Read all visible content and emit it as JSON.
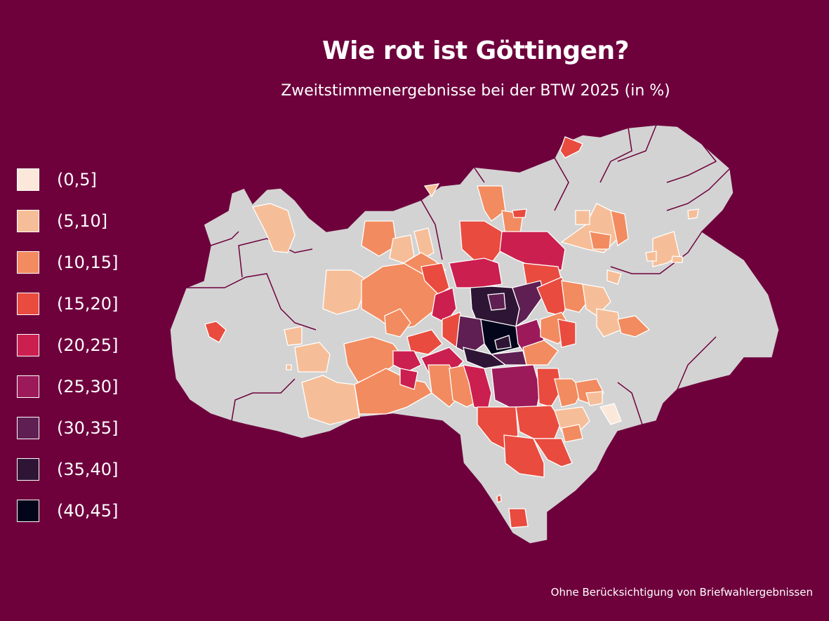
{
  "title": "Wie rot ist Göttingen?",
  "subtitle": "Zweitstimmenergebnisse bei der BTW 2025 (in %)",
  "footnote": "Ohne Berücksichtigung von Briefwahlergebnissen",
  "colors": {
    "background": "#6e003c",
    "no_data": "#d3d3d3",
    "border": "#ffffff",
    "district_border": "#6e003c"
  },
  "legend": [
    {
      "label": "(0,5]",
      "color": "#fbe8da"
    },
    {
      "label": "(5,10]",
      "color": "#f6be98"
    },
    {
      "label": "(10,15]",
      "color": "#f28b5f"
    },
    {
      "label": "(15,20]",
      "color": "#e94b3f"
    },
    {
      "label": "(20,25]",
      "color": "#cb1f4f"
    },
    {
      "label": "(25,30]",
      "color": "#9c1a5a"
    },
    {
      "label": "(30,35]",
      "color": "#5f1f52"
    },
    {
      "label": "(35,40]",
      "color": "#2f1535"
    },
    {
      "label": "(40,45]",
      "color": "#03051a"
    }
  ]
}
